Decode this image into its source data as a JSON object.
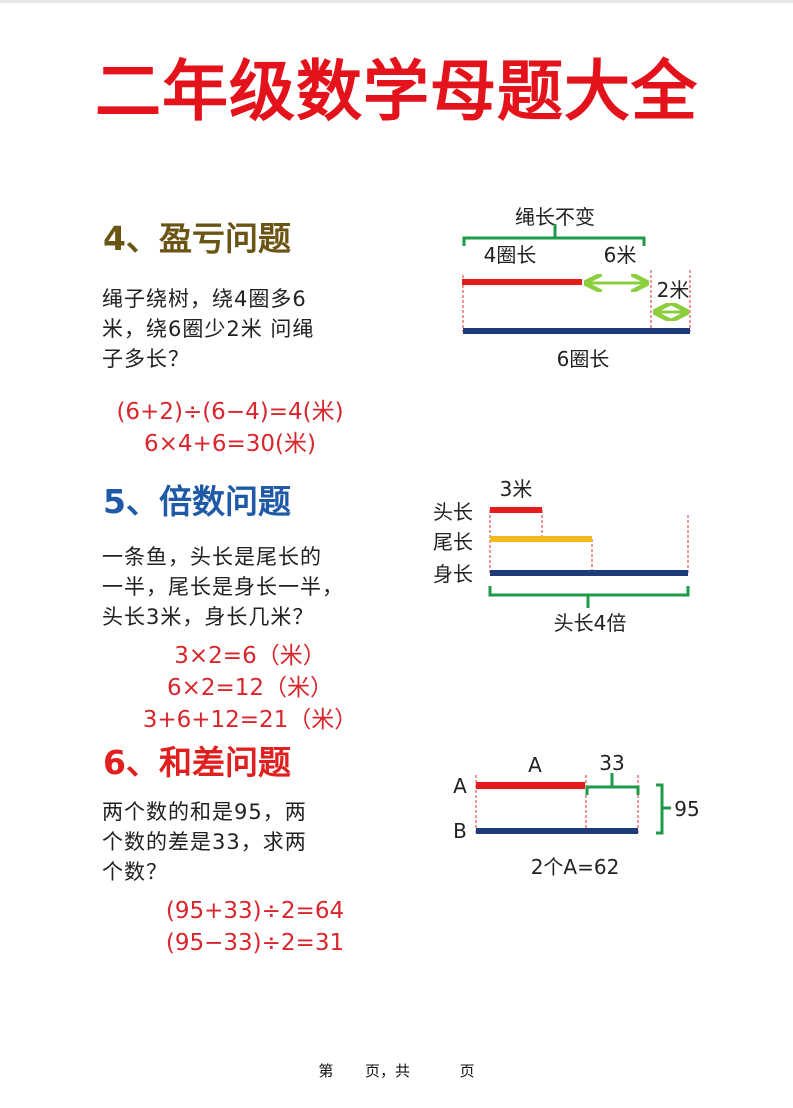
{
  "title": "二年级数学母题大全",
  "colors": {
    "title": "#e4121b",
    "heading_4": "#6b5514",
    "heading_5": "#1f5aa6",
    "heading_6": "#e0201f",
    "formula": "#d9262c",
    "red_bar": "#e41b1b",
    "blue_bar": "#1d3a7a",
    "yellow_bar": "#f5b81c",
    "green": "#1f9a4a",
    "arrow_green": "#8bcf3f"
  },
  "sections": [
    {
      "heading": "4、盈亏问题",
      "problem_lines": [
        "绳子绕树，绕4圈多6",
        "米，绕6圈少2米  问绳",
        "子多长？"
      ],
      "formulas": [
        "(6+2)÷(6−4)=4(米)",
        "6×4+6=30(米)"
      ],
      "diagram": {
        "top_label": "绳长不变",
        "label_a": "4圈长",
        "label_b": "6米",
        "label_c": "2米",
        "bottom_label": "6圈长"
      }
    },
    {
      "heading": "5、倍数问题",
      "problem_lines": [
        "一条鱼，头长是尾长的",
        "一半，尾长是身长一半，",
        "头长3米，身长几米？"
      ],
      "formulas": [
        "3×2=6（米）",
        "6×2=12（米）",
        "3+6+12=21（米）"
      ],
      "diagram": {
        "top_label": "3米",
        "row_labels": [
          "头长",
          "尾长",
          "身长"
        ],
        "bottom_label": "头长4倍"
      }
    },
    {
      "heading": "6、和差问题",
      "problem_lines": [
        "两个数的和是95，两",
        "个数的差是33，求两",
        "个数？"
      ],
      "formulas": [
        "(95+33)÷2=64",
        "(95−33)÷2=31"
      ],
      "diagram": {
        "row_a": "A",
        "row_b": "B",
        "seg_label": "A",
        "diff_label": "33",
        "sum_label": "95",
        "bottom_label": "2个A=62"
      }
    }
  ],
  "footer": {
    "page_prefix": "第",
    "page_mid": "页，共",
    "page_suffix": "页"
  }
}
